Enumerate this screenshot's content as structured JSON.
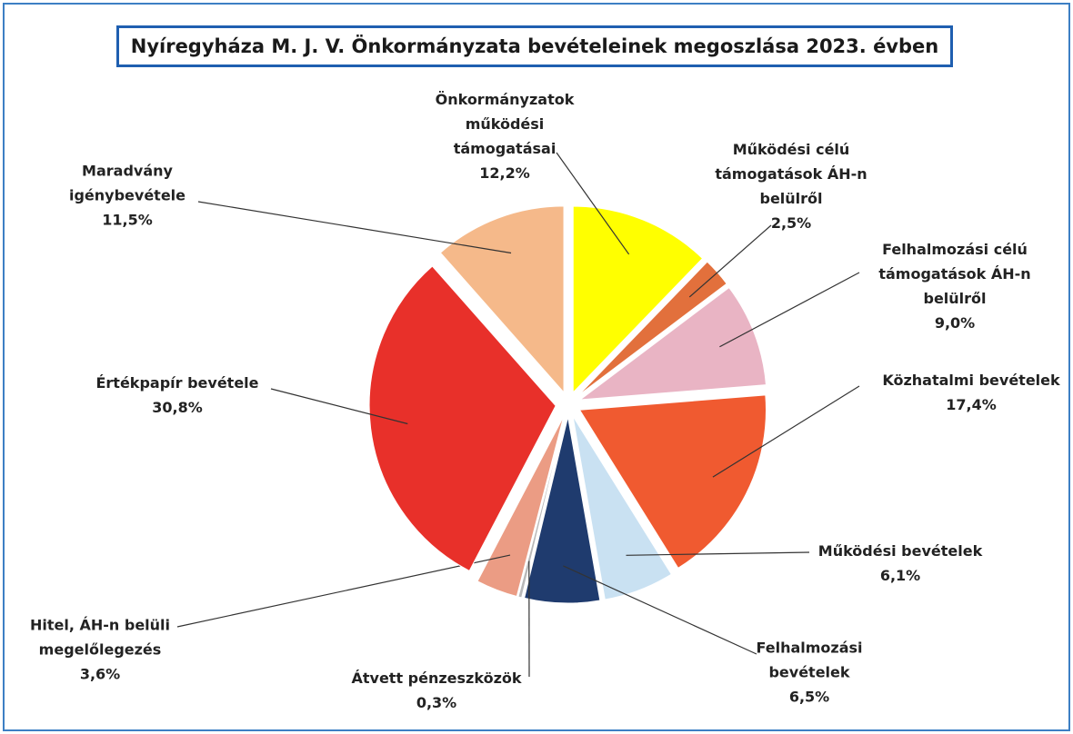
{
  "chart_data": {
    "type": "pie",
    "title": "Nyíregyháza M. J. V. Önkormányzata bevételeinek megoszlása 2023. évben",
    "categories": [
      "Önkormányzatok működési támogatásai",
      "Működési célú támogatások ÁH-n belülről",
      "Felhalmozási célú támogatások ÁH-n belülről",
      "Közhatalmi bevételek",
      "Működési bevételek",
      "Felhalmozási bevételek",
      "Átvett pénzeszközök",
      "Hitel, ÁH-n belüli megelőlegezés",
      "Értékpapír bevétele",
      "Maradvány igénybevétele"
    ],
    "values": [
      12.2,
      2.5,
      9.0,
      17.4,
      6.1,
      6.5,
      0.3,
      3.6,
      30.8,
      11.5
    ],
    "value_labels": [
      "12,2%",
      "2,5%",
      "9,0%",
      "17,4%",
      "6,1%",
      "6,5%",
      "0,3%",
      "3,6%",
      "30,8%",
      "11,5%"
    ],
    "colors": [
      "#ffff00",
      "#e2703c",
      "#e9b4c4",
      "#f05a30",
      "#c9e1f2",
      "#1f3b6e",
      "#b8b8b8",
      "#eb9c84",
      "#e8302a",
      "#f5b98a"
    ]
  }
}
